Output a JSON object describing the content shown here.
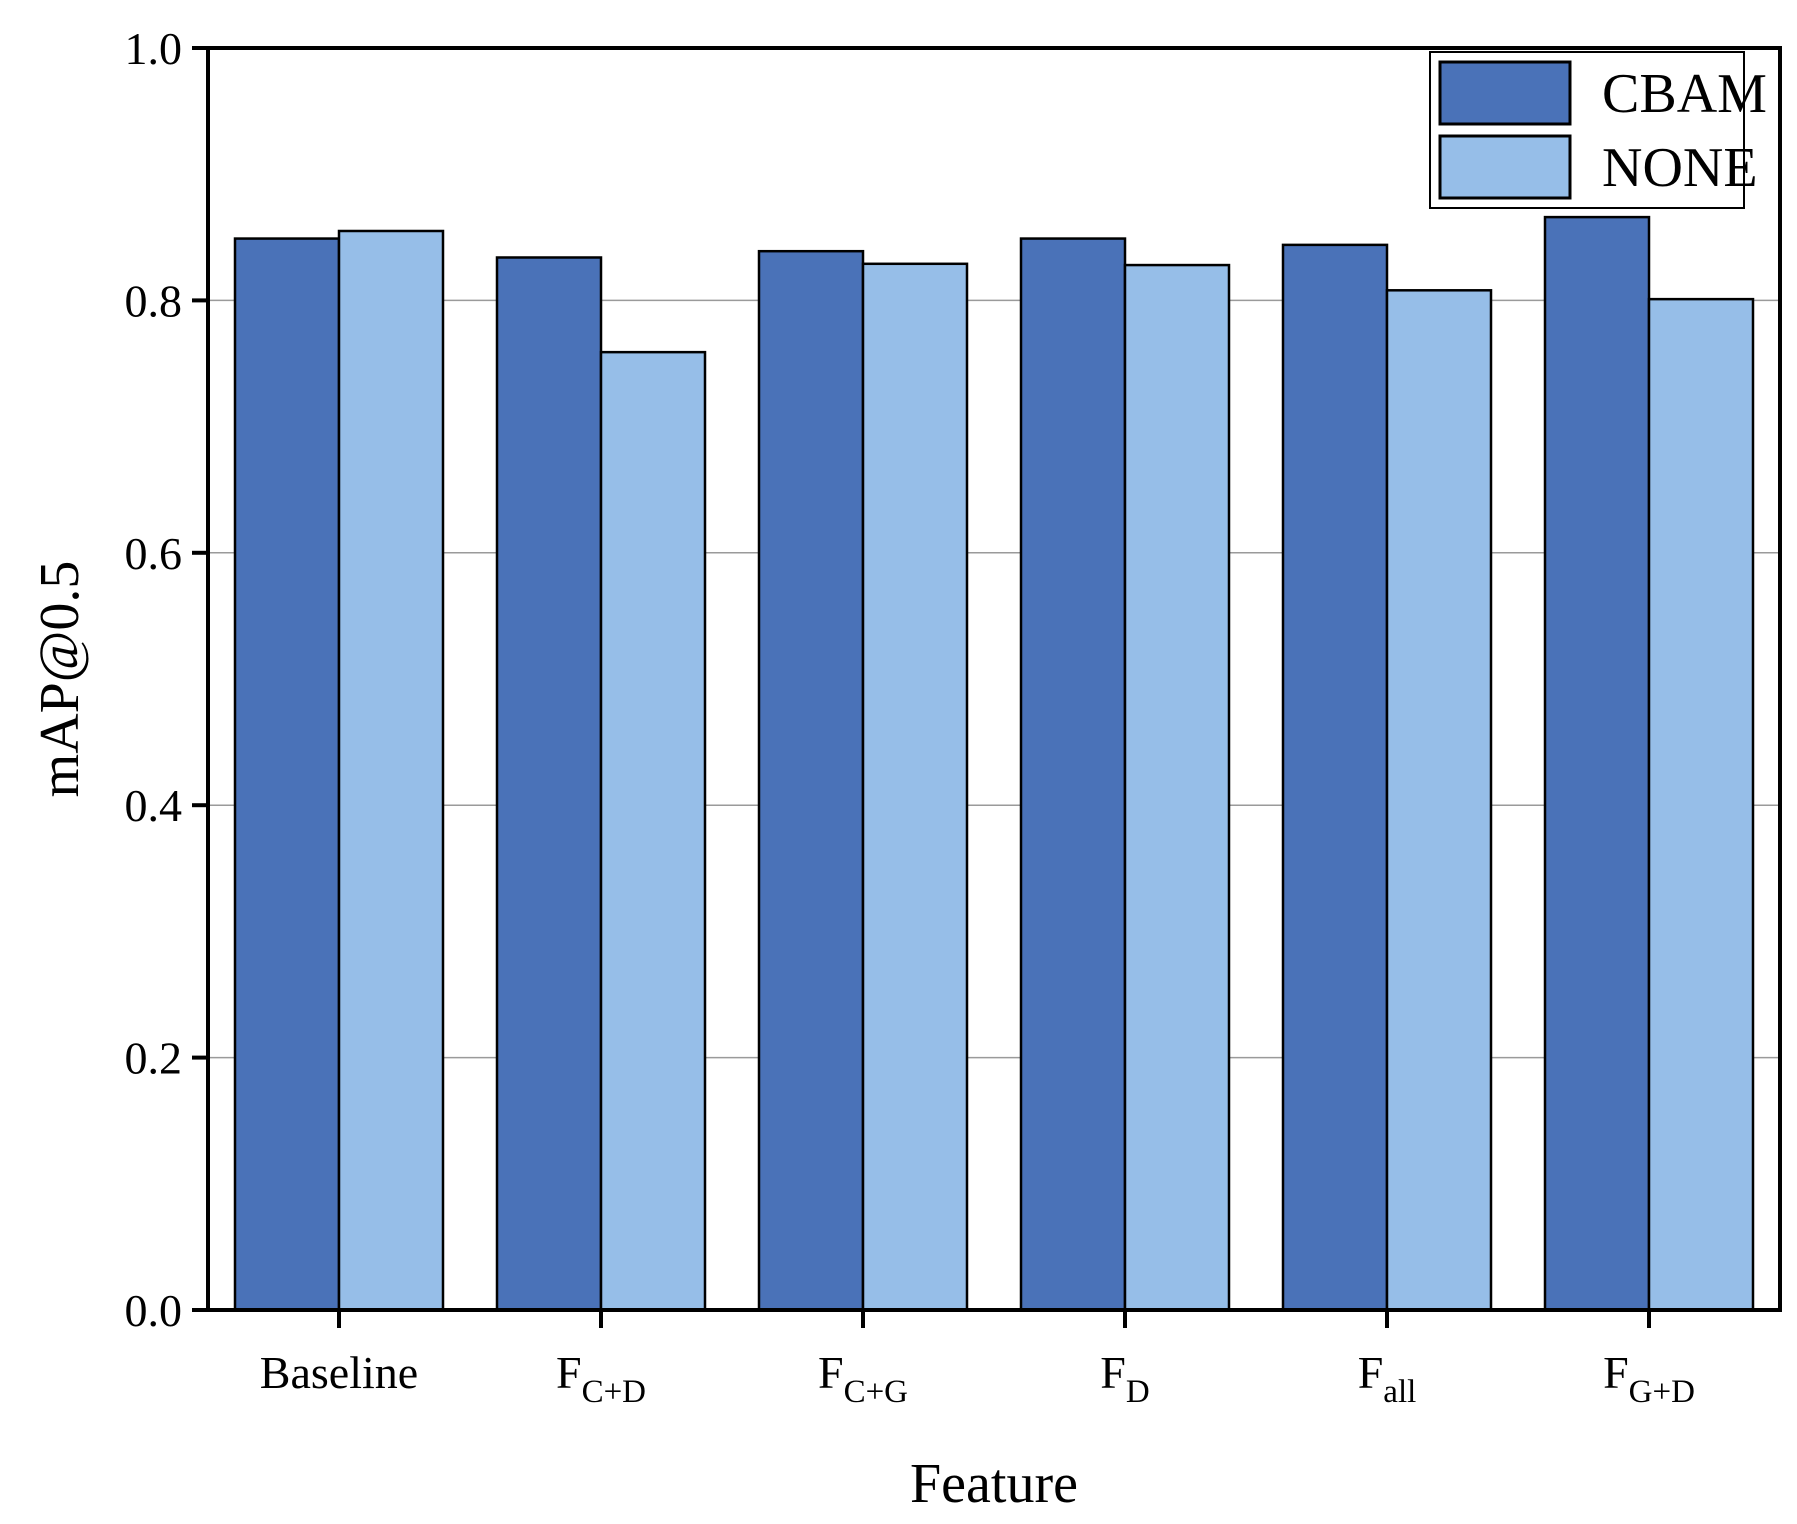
{
  "chart_data": {
    "type": "bar",
    "categories": [
      {
        "main": "Baseline",
        "sub": ""
      },
      {
        "main": "F",
        "sub": "C+D"
      },
      {
        "main": "F",
        "sub": "C+G"
      },
      {
        "main": "F",
        "sub": "D"
      },
      {
        "main": "F",
        "sub": "all"
      },
      {
        "main": "F",
        "sub": "G+D"
      }
    ],
    "series": [
      {
        "name": "CBAM",
        "color": "#4A72B8",
        "values": [
          0.849,
          0.834,
          0.839,
          0.849,
          0.844,
          0.866
        ]
      },
      {
        "name": "NONE",
        "color": "#96BEE8",
        "values": [
          0.855,
          0.759,
          0.829,
          0.828,
          0.808,
          0.801
        ]
      }
    ],
    "xlabel": "Feature",
    "ylabel": "mAP@0.5",
    "ylim": [
      0.0,
      1.0
    ],
    "yticks": [
      "0.0",
      "0.2",
      "0.4",
      "0.6",
      "0.8",
      "1.0"
    ],
    "grid": true,
    "legend_position": "top-right"
  }
}
